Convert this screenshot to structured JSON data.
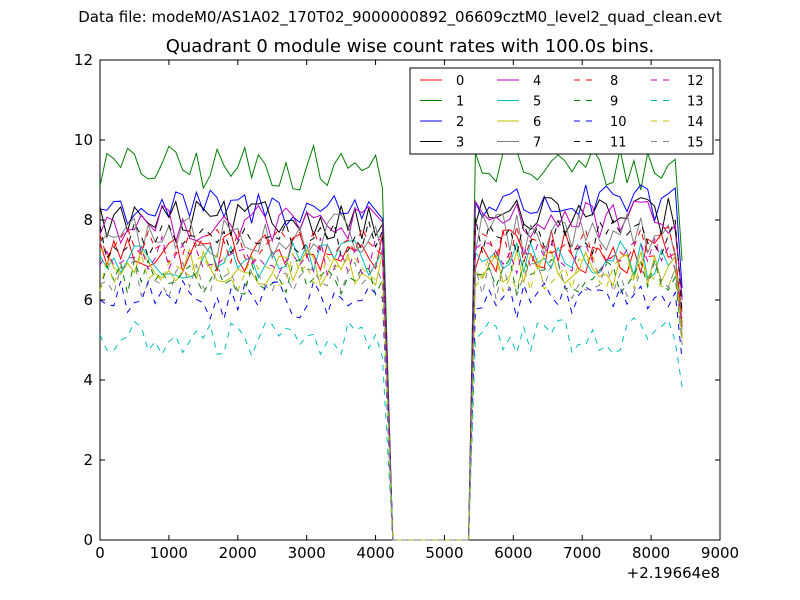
{
  "figure": {
    "suptitle": "Data file: modeM0/AS1A02_170T02_9000000892_06609cztM0_level2_quad_clean.evt"
  },
  "chart_data": {
    "type": "line",
    "title": "Quadrant 0 module wise count rates with 100.0s bins.",
    "xlabel": "",
    "ylabel": "",
    "x_offset_label": "+2.19664e8",
    "xlim": [
      0,
      9000
    ],
    "ylim": [
      0,
      12
    ],
    "x_ticks": [
      0,
      1000,
      2000,
      3000,
      4000,
      5000,
      6000,
      7000,
      8000,
      9000
    ],
    "y_ticks": [
      0,
      2,
      4,
      6,
      8,
      10,
      12
    ],
    "x_tick_labels": [
      "0",
      "1000",
      "2000",
      "3000",
      "4000",
      "5000",
      "6000",
      "7000",
      "8000",
      "9000"
    ],
    "y_tick_labels": [
      "0",
      "2",
      "4",
      "6",
      "8",
      "10",
      "12"
    ],
    "grid": false,
    "legend_position": "top-right",
    "legend_columns": 4,
    "segments": [
      {
        "x_start": 0,
        "x_end": 4100
      },
      {
        "x_start": 5450,
        "x_end": 8450
      }
    ],
    "gap": {
      "x_start": 4250,
      "x_end": 5350,
      "value": 0
    },
    "bin_width": 100,
    "series": [
      {
        "name": "0",
        "color": "#ff0000",
        "dash": "solid",
        "mean1": 7.2,
        "mean2": 7.2,
        "amp": 0.35
      },
      {
        "name": "1",
        "color": "#008000",
        "dash": "solid",
        "mean1": 9.3,
        "mean2": 9.3,
        "amp": 0.35
      },
      {
        "name": "2",
        "color": "#0000ff",
        "dash": "solid",
        "mean1": 8.3,
        "mean2": 8.4,
        "amp": 0.3
      },
      {
        "name": "3",
        "color": "#000000",
        "dash": "solid",
        "mean1": 8.0,
        "mean2": 8.1,
        "amp": 0.3
      },
      {
        "name": "4",
        "color": "#bf00bf",
        "dash": "solid",
        "mean1": 7.9,
        "mean2": 8.0,
        "amp": 0.3
      },
      {
        "name": "5",
        "color": "#00bfbf",
        "dash": "solid",
        "mean1": 7.0,
        "mean2": 7.0,
        "amp": 0.3
      },
      {
        "name": "6",
        "color": "#bfbf00",
        "dash": "solid",
        "mean1": 6.8,
        "mean2": 6.8,
        "amp": 0.3
      },
      {
        "name": "7",
        "color": "#808080",
        "dash": "solid",
        "mean1": 7.6,
        "mean2": 7.6,
        "amp": 0.35
      },
      {
        "name": "8",
        "color": "#ff0000",
        "dash": "dashed",
        "mean1": 7.4,
        "mean2": 7.4,
        "amp": 0.3
      },
      {
        "name": "9",
        "color": "#008000",
        "dash": "dashed",
        "mean1": 6.6,
        "mean2": 6.6,
        "amp": 0.3
      },
      {
        "name": "10",
        "color": "#0000ff",
        "dash": "dashed",
        "mean1": 6.0,
        "mean2": 6.0,
        "amp": 0.3
      },
      {
        "name": "11",
        "color": "#000000",
        "dash": "dashed",
        "mean1": 7.5,
        "mean2": 7.6,
        "amp": 0.3
      },
      {
        "name": "12",
        "color": "#bf00bf",
        "dash": "dashed",
        "mean1": 7.1,
        "mean2": 7.1,
        "amp": 0.3
      },
      {
        "name": "13",
        "color": "#00bfbf",
        "dash": "dashed",
        "mean1": 5.0,
        "mean2": 5.1,
        "amp": 0.3
      },
      {
        "name": "14",
        "color": "#bfbf00",
        "dash": "dashed",
        "mean1": 6.7,
        "mean2": 6.7,
        "amp": 0.3
      },
      {
        "name": "15",
        "color": "#808080",
        "dash": "dashed",
        "mean1": 6.5,
        "mean2": 6.5,
        "amp": 0.3
      }
    ]
  }
}
